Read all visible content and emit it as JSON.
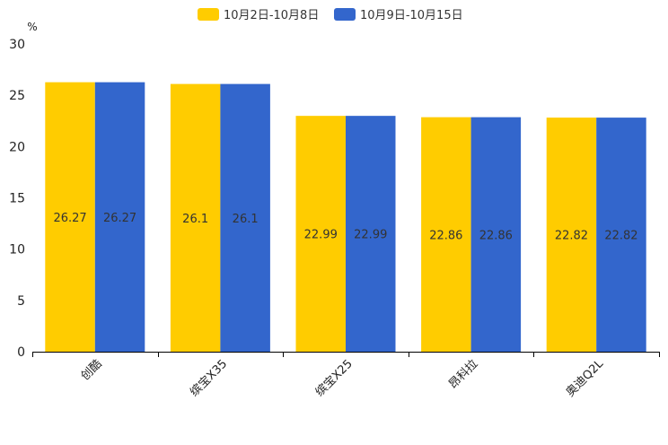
{
  "chart_data": {
    "type": "bar",
    "unit": "%",
    "categories": [
      "创酷",
      "缤宝X35",
      "缤宝X25",
      "昂科拉",
      "奥迪Q2L"
    ],
    "series": [
      {
        "name": "10月2日-10月8日",
        "color": "#FFCC00",
        "values": [
          26.27,
          26.1,
          22.99,
          22.86,
          22.82
        ]
      },
      {
        "name": "10月9日-10月15日",
        "color": "#3366CC",
        "values": [
          26.27,
          26.1,
          22.99,
          22.86,
          22.82
        ]
      }
    ],
    "ylim": [
      0,
      30
    ],
    "yticks": [
      0,
      5,
      10,
      15,
      20,
      25,
      30
    ],
    "legend_position": "top-center",
    "grid": false,
    "title": "",
    "xlabel": "",
    "ylabel": "%"
  }
}
